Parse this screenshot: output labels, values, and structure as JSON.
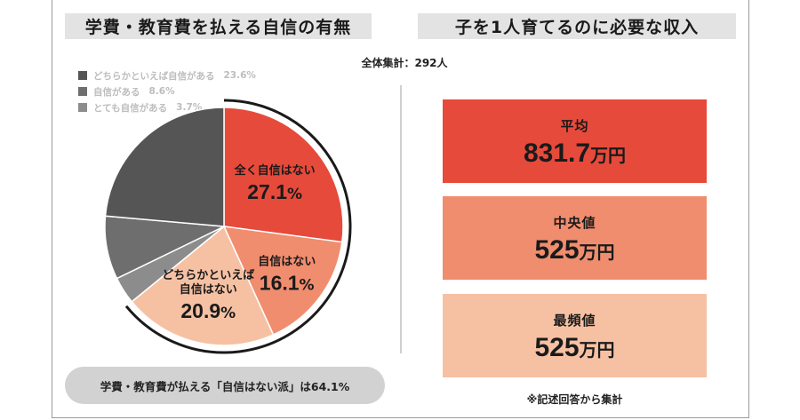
{
  "left": {
    "title": "学費・教育費を払える自信の有無",
    "total": "全体集計：292人",
    "summary": "学費・教育費が払える「自信はない派」は64.1%"
  },
  "right": {
    "title": "子を1人育てるのに必要な収入",
    "stats": [
      {
        "title": "平均",
        "value": "831.7",
        "unit": "万円",
        "color": "#e64a3b"
      },
      {
        "title": "中央値",
        "value": "525",
        "unit": "万円",
        "color": "#f08d6e"
      },
      {
        "title": "最頻値",
        "value": "525",
        "unit": "万円",
        "color": "#f6c1a3"
      }
    ],
    "note": "※記述回答から集計"
  },
  "chart_data": {
    "type": "pie",
    "title": "学費・教育費を払える自信の有無",
    "slices": [
      {
        "label": "全く自信はない",
        "value": 27.1,
        "color": "#e64a3b"
      },
      {
        "label": "自信はない",
        "value": 16.1,
        "color": "#f08d6e"
      },
      {
        "label": "どちらかといえば自信はない",
        "value": 20.9,
        "color": "#f6c1a3"
      },
      {
        "label": "とても自信がある",
        "value": 3.7,
        "color": "#8c8c8c"
      },
      {
        "label": "自信がある",
        "value": 8.6,
        "color": "#6e6e6e"
      },
      {
        "label": "どちらかといえば自信がある",
        "value": 23.6,
        "color": "#555555"
      }
    ],
    "legend": [
      {
        "label": "どちらかといえば自信がある",
        "value": "23.6%",
        "color": "#555555"
      },
      {
        "label": "自信がある",
        "value": "8.6%",
        "color": "#6e6e6e"
      },
      {
        "label": "とても自信がある",
        "value": "3.7%",
        "color": "#8c8c8c"
      }
    ],
    "slice_labels": [
      {
        "lines": [
          "全く自信はない"
        ],
        "pct": "27.1",
        "slice": 0
      },
      {
        "lines": [
          "自信はない"
        ],
        "pct": "16.1",
        "slice": 1
      },
      {
        "lines": [
          "どちらかといえば",
          "自信はない"
        ],
        "pct": "20.9",
        "slice": 2
      }
    ],
    "unit": "%",
    "legend_position": "top-left"
  }
}
